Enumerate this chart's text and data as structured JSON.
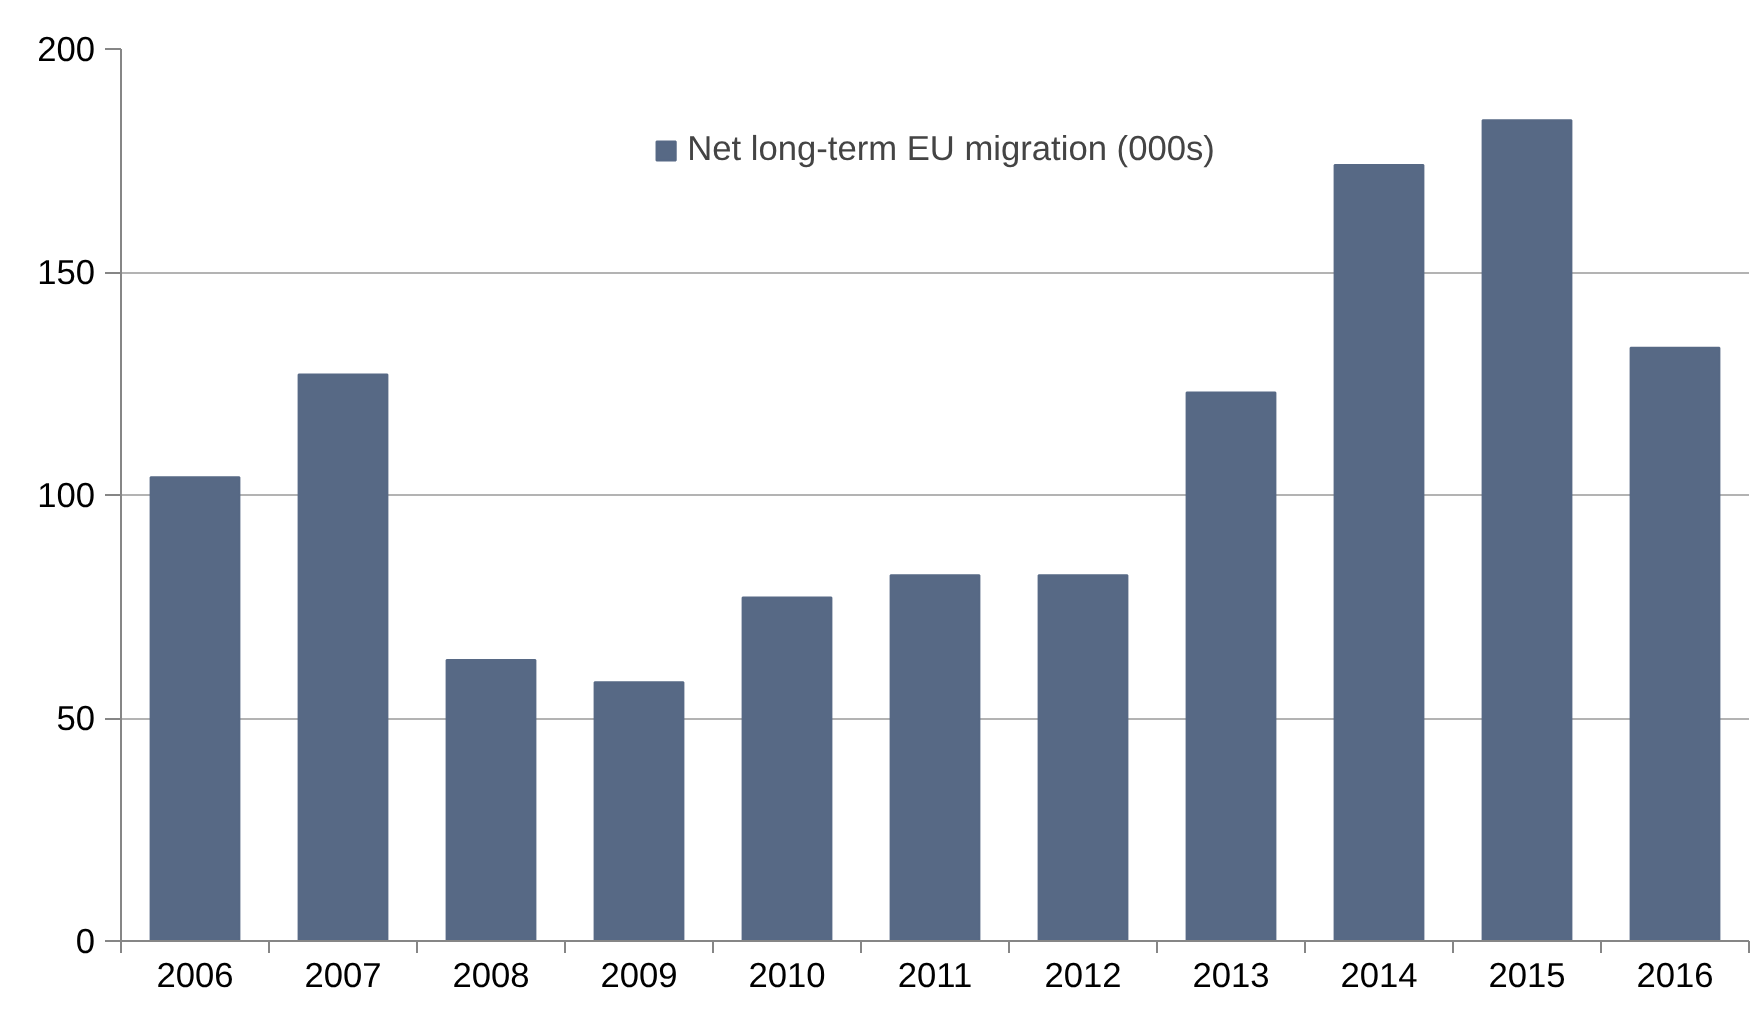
{
  "chart_data": {
    "type": "bar",
    "categories": [
      "2006",
      "2007",
      "2008",
      "2009",
      "2010",
      "2011",
      "2012",
      "2013",
      "2014",
      "2015",
      "2016"
    ],
    "series": [
      {
        "name": "Net long-term EU migration (000s)",
        "color": "#576985",
        "values": [
          104,
          127,
          63,
          58,
          77,
          82,
          82,
          123,
          174,
          184,
          133
        ]
      }
    ],
    "ylim": [
      0,
      200
    ],
    "yticks": [
      0,
      50,
      100,
      150,
      200
    ],
    "grid": "y",
    "legend": "top"
  }
}
